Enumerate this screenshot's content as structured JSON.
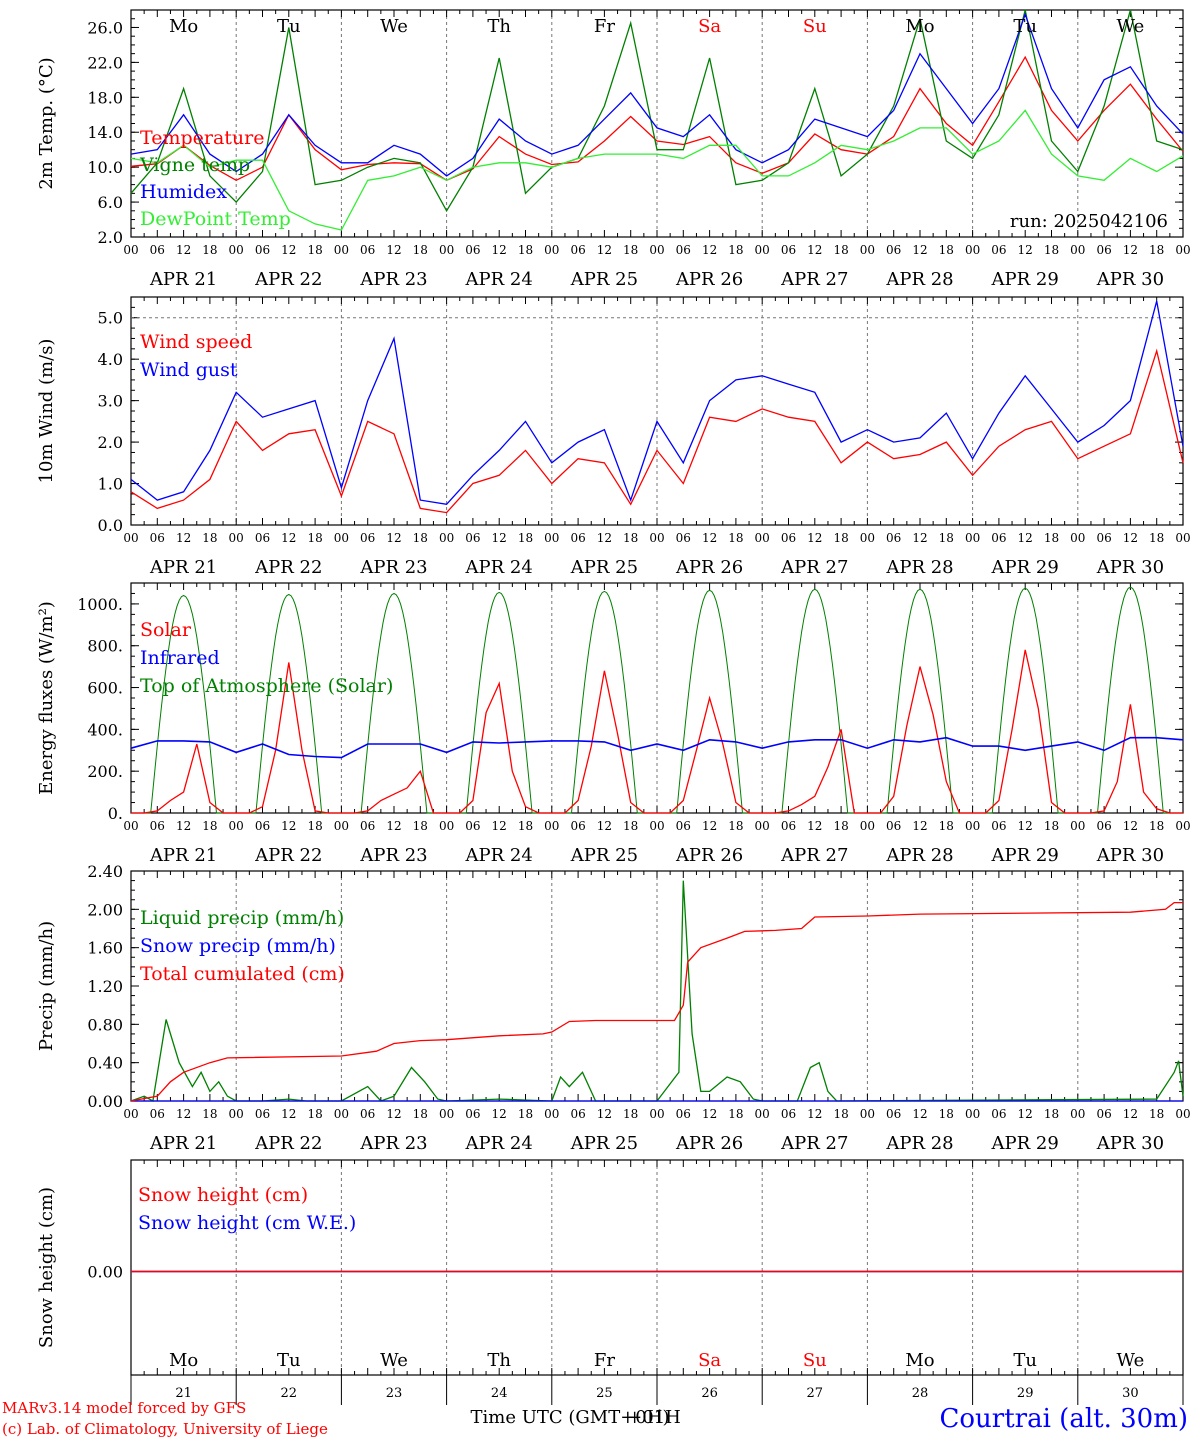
{
  "days": [
    "APR 21",
    "APR 22",
    "APR 23",
    "APR 24",
    "APR 25",
    "APR 26",
    "APR 27",
    "APR 28",
    "APR 29",
    "APR 30"
  ],
  "weekdays": [
    "Mo",
    "Tu",
    "We",
    "Th",
    "Fr",
    "Sa",
    "Su",
    "Mo",
    "Tu",
    "We"
  ],
  "weekend_indices": [
    5,
    6
  ],
  "day_numbers": [
    "21",
    "22",
    "23",
    "24",
    "25",
    "26",
    "27",
    "28",
    "29",
    "30"
  ],
  "hour_ticks": [
    "00",
    "06",
    "12",
    "18"
  ],
  "end_tick": "00",
  "colors": {
    "red": "#ff0000",
    "green": "#008000",
    "blue": "#0000ff",
    "lightgreen": "#33ee33",
    "grid": "#777777",
    "axis": "#000000"
  },
  "run_label": "run: 2025042106",
  "footer": {
    "model": "MARv3.14 model forced by GFS",
    "copyright": "(c) Lab. of Climatology, University of Liege",
    "xlabel": "Time UTC (GMT+0H)",
    "xlabel_overlap": "+01H",
    "station": "Courtrai (alt. 30m)"
  },
  "chart_data": [
    {
      "type": "line",
      "id": "temp",
      "ylabel": "2m Temp. (°C)",
      "ylim": [
        2,
        28
      ],
      "ytick_values": [
        2,
        6,
        10,
        14,
        18,
        22,
        26
      ],
      "ytick_labels": [
        "2.0",
        "6.0",
        "10.0",
        "14.0",
        "18.0",
        "22.0",
        "26.0"
      ],
      "x_hours": [
        0,
        6,
        12,
        18,
        24,
        30,
        36,
        42,
        48,
        54,
        60,
        66,
        72,
        78,
        84,
        90,
        96,
        102,
        108,
        114,
        120,
        126,
        132,
        138,
        144,
        150,
        156,
        162,
        168,
        174,
        180,
        186,
        192,
        198,
        204,
        210,
        216,
        222,
        228,
        234,
        240
      ],
      "series": [
        {
          "name": "Temperature",
          "color": "red",
          "values": [
            10.1,
            10.4,
            12.5,
            10.2,
            8.5,
            10.0,
            16.0,
            12.0,
            9.7,
            10.3,
            10.5,
            10.4,
            8.5,
            9.8,
            13.5,
            11.5,
            10.3,
            10.6,
            13.0,
            15.8,
            13.0,
            12.6,
            13.5,
            10.5,
            9.3,
            10.5,
            13.8,
            12.0,
            11.5,
            13.5,
            19.0,
            15.0,
            12.5,
            17.5,
            22.6,
            16.5,
            13.0,
            16.5,
            19.5,
            15.5,
            11.8
          ]
        },
        {
          "name": "Vigne temp",
          "color": "green",
          "values": [
            7.0,
            10.5,
            19.0,
            9.0,
            6.0,
            9.5,
            26.0,
            8.0,
            8.5,
            10.0,
            11.0,
            10.5,
            5.0,
            10.0,
            22.5,
            7.0,
            10.0,
            11.0,
            17.0,
            26.5,
            12.0,
            12.0,
            22.5,
            8.0,
            8.5,
            10.5,
            19.0,
            9.0,
            11.5,
            17.0,
            27.0,
            13.0,
            11.0,
            16.0,
            28.0,
            13.0,
            9.5,
            17.0,
            28.0,
            13.0,
            12.0
          ]
        },
        {
          "name": "Humidex",
          "color": "blue",
          "values": [
            11.5,
            12.0,
            16.0,
            11.5,
            9.5,
            11.5,
            16.0,
            12.5,
            10.5,
            10.5,
            12.5,
            11.5,
            9.0,
            11.0,
            15.5,
            13.0,
            11.5,
            12.5,
            15.5,
            18.5,
            14.5,
            13.5,
            16.0,
            12.0,
            10.5,
            12.0,
            15.5,
            14.5,
            13.5,
            16.5,
            23.0,
            19.0,
            15.0,
            19.0,
            27.5,
            19.0,
            14.5,
            20.0,
            21.5,
            17.0,
            13.8
          ]
        },
        {
          "name": "DewPoint Temp",
          "color": "lightgreen",
          "values": [
            11.0,
            10.5,
            12.5,
            10.0,
            10.8,
            10.8,
            5.0,
            3.5,
            2.8,
            8.5,
            9.0,
            10.0,
            8.5,
            10.0,
            10.5,
            10.5,
            10.0,
            11.0,
            11.5,
            11.5,
            11.5,
            11.0,
            12.5,
            12.5,
            9.0,
            9.0,
            10.5,
            12.5,
            12.0,
            13.0,
            14.5,
            14.5,
            11.5,
            13.0,
            16.5,
            11.5,
            9.0,
            8.5,
            11.0,
            9.5,
            11.3
          ]
        }
      ]
    },
    {
      "type": "line",
      "id": "wind",
      "ylabel": "10m Wind (m/s)",
      "ylim": [
        0,
        5.5
      ],
      "ytick_values": [
        0,
        1,
        2,
        3,
        4,
        5
      ],
      "ytick_labels": [
        "0.0",
        "1.0",
        "2.0",
        "3.0",
        "4.0",
        "5.0"
      ],
      "x_hours": [
        0,
        6,
        12,
        18,
        24,
        30,
        36,
        42,
        48,
        54,
        60,
        66,
        72,
        78,
        84,
        90,
        96,
        102,
        108,
        114,
        120,
        126,
        132,
        138,
        144,
        150,
        156,
        162,
        168,
        174,
        180,
        186,
        192,
        198,
        204,
        210,
        216,
        222,
        228,
        234,
        240
      ],
      "series": [
        {
          "name": "Wind speed",
          "color": "red",
          "values": [
            0.8,
            0.4,
            0.6,
            1.1,
            2.5,
            1.8,
            2.2,
            2.3,
            0.7,
            2.5,
            2.2,
            0.4,
            0.3,
            1.0,
            1.2,
            1.8,
            1.0,
            1.6,
            1.5,
            0.5,
            1.8,
            1.0,
            2.6,
            2.5,
            2.8,
            2.6,
            2.5,
            1.5,
            2.0,
            1.6,
            1.7,
            2.0,
            1.2,
            1.9,
            2.3,
            2.5,
            1.6,
            1.9,
            2.2,
            4.2,
            1.5
          ]
        },
        {
          "name": "Wind gust",
          "color": "blue",
          "values": [
            1.1,
            0.6,
            0.8,
            1.8,
            3.2,
            2.6,
            2.8,
            3.0,
            0.9,
            3.0,
            4.5,
            0.6,
            0.5,
            1.2,
            1.8,
            2.5,
            1.5,
            2.0,
            2.3,
            0.6,
            2.5,
            1.5,
            3.0,
            3.5,
            3.6,
            3.4,
            3.2,
            2.0,
            2.3,
            2.0,
            2.1,
            2.7,
            1.6,
            2.7,
            3.6,
            2.8,
            2.0,
            2.4,
            3.0,
            5.4,
            1.9
          ]
        }
      ]
    },
    {
      "type": "line",
      "id": "energy",
      "ylabel": "Energy fluxes (W/m²)",
      "ylim": [
        0,
        1100
      ],
      "ytick_values": [
        0,
        200,
        400,
        600,
        800,
        1000
      ],
      "ytick_labels": [
        "0.",
        "200.",
        "400.",
        "600.",
        "800.",
        "1000."
      ],
      "series": [
        {
          "name": "Solar",
          "color": "red",
          "day_shapes": [
            [
              0,
              0,
              10,
              60,
              100,
              330,
              50,
              0
            ],
            [
              0,
              0,
              30,
              300,
              720,
              300,
              10,
              0
            ],
            [
              0,
              0,
              10,
              60,
              90,
              120,
              200,
              0
            ],
            [
              0,
              0,
              60,
              480,
              620,
              200,
              30,
              0
            ],
            [
              0,
              0,
              60,
              320,
              680,
              380,
              50,
              0
            ],
            [
              0,
              0,
              60,
              300,
              550,
              330,
              50,
              0
            ],
            [
              0,
              0,
              10,
              40,
              80,
              220,
              400,
              0
            ],
            [
              0,
              0,
              80,
              420,
              700,
              470,
              150,
              0
            ],
            [
              0,
              0,
              60,
              400,
              780,
              500,
              50,
              0
            ],
            [
              0,
              0,
              10,
              150,
              520,
              100,
              20,
              0
            ]
          ]
        },
        {
          "name": "Infrared",
          "color": "blue",
          "values": [
            310,
            345,
            345,
            340,
            290,
            330,
            280,
            270,
            265,
            330,
            330,
            330,
            290,
            340,
            335,
            340,
            345,
            345,
            340,
            300,
            330,
            300,
            350,
            340,
            310,
            340,
            350,
            350,
            310,
            350,
            340,
            360,
            320,
            320,
            300,
            320,
            340,
            300,
            360,
            360,
            350
          ]
        },
        {
          "name": "Top of Atmosphere (Solar)",
          "color": "green",
          "peaks": [
            1040,
            1045,
            1050,
            1055,
            1060,
            1065,
            1070,
            1070,
            1075,
            1080
          ]
        }
      ],
      "x_hours": [
        0,
        6,
        12,
        18,
        24,
        30,
        36,
        42,
        48,
        54,
        60,
        66,
        72,
        78,
        84,
        90,
        96,
        102,
        108,
        114,
        120,
        126,
        132,
        138,
        144,
        150,
        156,
        162,
        168,
        174,
        180,
        186,
        192,
        198,
        204,
        210,
        216,
        222,
        228,
        234,
        240
      ]
    },
    {
      "type": "line",
      "id": "precip",
      "ylabel": "Precip (mm/h)",
      "ylim": [
        0,
        2.4
      ],
      "ytick_values": [
        0,
        0.4,
        0.8,
        1.2,
        1.6,
        2.0,
        2.4
      ],
      "ytick_labels": [
        "0.00",
        "0.40",
        "0.80",
        "1.20",
        "1.60",
        "2.00",
        "2.40"
      ],
      "series": [
        {
          "name": "Liquid precip (mm/h)",
          "color": "green",
          "points": [
            [
              0,
              0
            ],
            [
              3,
              0.05
            ],
            [
              5,
              0
            ],
            [
              8,
              0.85
            ],
            [
              11,
              0.4
            ],
            [
              14,
              0.15
            ],
            [
              16,
              0.3
            ],
            [
              18,
              0.1
            ],
            [
              20,
              0.2
            ],
            [
              22,
              0.05
            ],
            [
              24,
              0
            ],
            [
              30,
              0
            ],
            [
              36,
              0.02
            ],
            [
              40,
              0
            ],
            [
              48,
              0
            ],
            [
              54,
              0.15
            ],
            [
              57,
              0
            ],
            [
              60,
              0.05
            ],
            [
              64,
              0.35
            ],
            [
              67,
              0.2
            ],
            [
              70,
              0.02
            ],
            [
              72,
              0
            ],
            [
              84,
              0.02
            ],
            [
              96,
              0
            ],
            [
              98,
              0.25
            ],
            [
              100,
              0.15
            ],
            [
              103,
              0.3
            ],
            [
              106,
              0
            ],
            [
              120,
              0
            ],
            [
              125,
              0.3
            ],
            [
              126,
              2.3
            ],
            [
              128,
              0.7
            ],
            [
              130,
              0.1
            ],
            [
              132,
              0.1
            ],
            [
              136,
              0.25
            ],
            [
              139,
              0.2
            ],
            [
              142,
              0.02
            ],
            [
              144,
              0
            ],
            [
              152,
              0
            ],
            [
              155,
              0.35
            ],
            [
              157,
              0.4
            ],
            [
              159,
              0.1
            ],
            [
              161,
              0
            ],
            [
              234,
              0.02
            ],
            [
              238,
              0.3
            ],
            [
              239,
              0.42
            ],
            [
              240,
              0.05
            ]
          ]
        },
        {
          "name": "Snow precip (mm/h)",
          "color": "blue",
          "points": [
            [
              0,
              0
            ],
            [
              240,
              0
            ]
          ]
        },
        {
          "name": "Total cumulated (cm)",
          "color": "red",
          "points": [
            [
              0,
              0
            ],
            [
              6,
              0.05
            ],
            [
              9,
              0.2
            ],
            [
              12,
              0.3
            ],
            [
              18,
              0.4
            ],
            [
              22,
              0.45
            ],
            [
              48,
              0.47
            ],
            [
              56,
              0.52
            ],
            [
              60,
              0.6
            ],
            [
              66,
              0.63
            ],
            [
              72,
              0.64
            ],
            [
              84,
              0.68
            ],
            [
              94,
              0.7
            ],
            [
              96,
              0.72
            ],
            [
              100,
              0.83
            ],
            [
              106,
              0.84
            ],
            [
              124,
              0.84
            ],
            [
              126,
              1.0
            ],
            [
              127,
              1.45
            ],
            [
              130,
              1.6
            ],
            [
              136,
              1.7
            ],
            [
              140,
              1.77
            ],
            [
              147,
              1.78
            ],
            [
              153,
              1.8
            ],
            [
              156,
              1.92
            ],
            [
              168,
              1.93
            ],
            [
              180,
              1.95
            ],
            [
              228,
              1.97
            ],
            [
              236,
              2.0
            ],
            [
              238,
              2.07
            ],
            [
              240,
              2.07
            ]
          ]
        }
      ]
    },
    {
      "type": "line",
      "id": "snow",
      "ylabel": "Snow height (cm)",
      "ylim": [
        -1,
        1
      ],
      "ytick_values": [
        0
      ],
      "ytick_labels": [
        "0.00"
      ],
      "series": [
        {
          "name": "Snow height (cm)",
          "color": "red",
          "points": [
            [
              0,
              0
            ],
            [
              240,
              0
            ]
          ]
        },
        {
          "name": "Snow height (cm W.E.)",
          "color": "blue",
          "points": [
            [
              0,
              0
            ],
            [
              240,
              0
            ]
          ]
        }
      ]
    }
  ]
}
